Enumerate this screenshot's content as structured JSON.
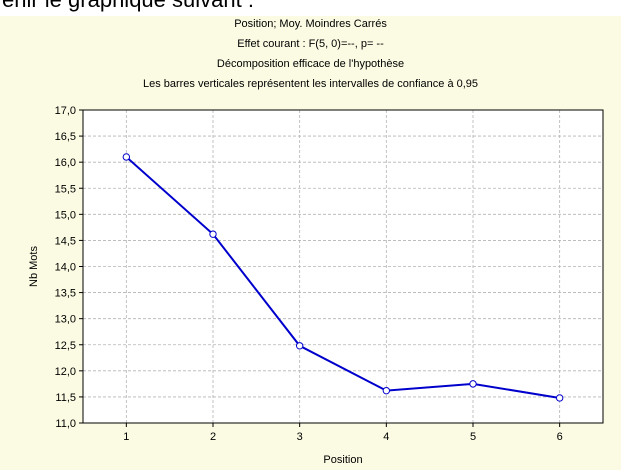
{
  "page_caption_fragment": "enir le graphique suivant :",
  "chart_data": {
    "type": "line",
    "title_lines": [
      "Position; Moy. Moindres Carrés",
      "Effet courant : F(5, 0)=--, p= --",
      "Décomposition efficace de l'hypothèse",
      "Les barres verticales représentent les intervalles de confiance à 0,95"
    ],
    "xlabel": "Position",
    "ylabel": "Nb Mots",
    "x": [
      1,
      2,
      3,
      4,
      5,
      6
    ],
    "x_tick_labels": [
      "1",
      "2",
      "3",
      "4",
      "5",
      "6"
    ],
    "y_tick_labels": [
      "11,0",
      "11,5",
      "12,0",
      "12,5",
      "13,0",
      "13,5",
      "14,0",
      "14,5",
      "15,0",
      "15,5",
      "16,0",
      "16,5",
      "17,0"
    ],
    "ylim": [
      11.0,
      17.0
    ],
    "xlim": [
      0.5,
      6.5
    ],
    "grid": true,
    "series": [
      {
        "values": [
          16.1,
          14.62,
          12.48,
          11.62,
          11.75,
          11.48
        ]
      }
    ],
    "colors": {
      "line": "#0000cc",
      "marker_fill": "#ffffff",
      "background": "#fbfbe3",
      "plot_area": "#ffffff",
      "grid": "#b4b4b4"
    }
  }
}
